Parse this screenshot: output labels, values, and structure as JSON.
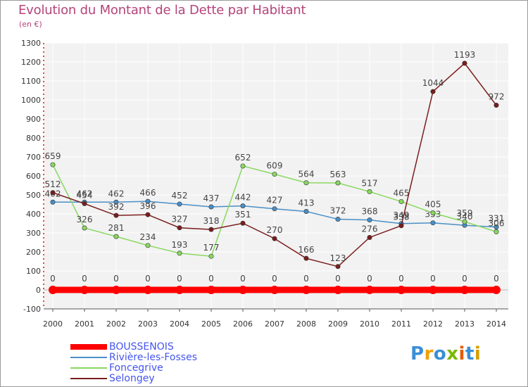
{
  "title": "Evolution du Montant de la Dette par Habitant",
  "subtitle": "(en €)",
  "logo": [
    "P",
    "r",
    "o",
    "x",
    "i",
    "t",
    "i"
  ],
  "logo_colors": [
    "#3a8fd6",
    "#f0a000",
    "#3a8fd6",
    "#7ab800",
    "#e85a00",
    "#3a8fd6",
    "#d4a000"
  ],
  "chart_data": {
    "type": "line",
    "title": "Evolution du Montant de la Dette par Habitant",
    "ylabel": "(en €)",
    "x": [
      2000,
      2001,
      2002,
      2003,
      2004,
      2005,
      2006,
      2007,
      2008,
      2009,
      2010,
      2011,
      2012,
      2013,
      2014
    ],
    "ylim": [
      -100,
      1300
    ],
    "yticks": [
      -100,
      0,
      100,
      200,
      300,
      400,
      500,
      600,
      700,
      800,
      900,
      1000,
      1100,
      1200,
      1300
    ],
    "grid": true,
    "legend": "bottom-left",
    "series": [
      {
        "name": "BOUSSENOIS",
        "color": "#ff0000",
        "values": [
          0,
          0,
          0,
          0,
          0,
          0,
          0,
          0,
          0,
          0,
          0,
          0,
          0,
          0,
          0
        ]
      },
      {
        "name": "Rivière-les-Fosses",
        "color": "#4a8fc7",
        "values": [
          462,
          462,
          462,
          466,
          452,
          437,
          442,
          427,
          413,
          372,
          368,
          349,
          353,
          340,
          331
        ]
      },
      {
        "name": "Foncegrive",
        "color": "#88d860",
        "values": [
          659,
          326,
          281,
          234,
          193,
          177,
          652,
          609,
          564,
          563,
          517,
          465,
          405,
          359,
          306
        ]
      },
      {
        "name": "Selongey",
        "color": "#7a1d1d",
        "values": [
          512,
          454,
          392,
          396,
          327,
          318,
          351,
          270,
          166,
          123,
          276,
          338,
          1044,
          1193,
          972
        ]
      }
    ]
  }
}
